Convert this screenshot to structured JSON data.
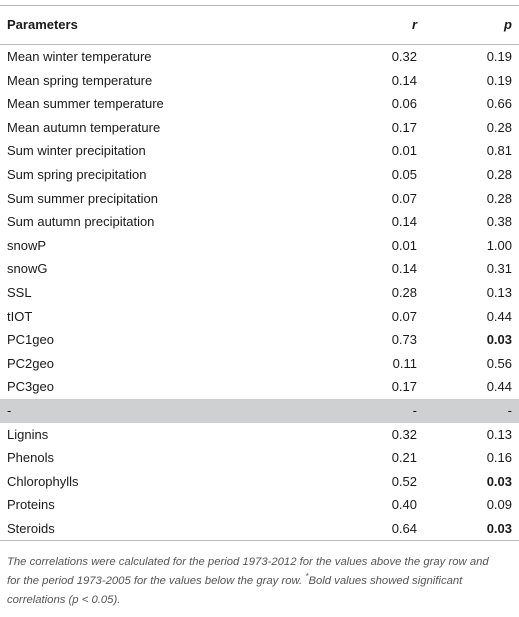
{
  "table": {
    "headers": {
      "parameter": "Parameters",
      "r": "r",
      "p": "p"
    },
    "rows": [
      {
        "parameter": "Mean winter temperature",
        "r": "0.32",
        "p": "0.19",
        "significant": false,
        "gray": false
      },
      {
        "parameter": "Mean spring temperature",
        "r": "0.14",
        "p": "0.19",
        "significant": false,
        "gray": false
      },
      {
        "parameter": "Mean summer temperature",
        "r": "0.06",
        "p": "0.66",
        "significant": false,
        "gray": false
      },
      {
        "parameter": "Mean autumn temperature",
        "r": "0.17",
        "p": "0.28",
        "significant": false,
        "gray": false
      },
      {
        "parameter": "Sum winter precipitation",
        "r": "0.01",
        "p": "0.81",
        "significant": false,
        "gray": false
      },
      {
        "parameter": "Sum spring precipitation",
        "r": "0.05",
        "p": "0.28",
        "significant": false,
        "gray": false
      },
      {
        "parameter": "Sum summer precipitation",
        "r": "0.07",
        "p": "0.28",
        "significant": false,
        "gray": false
      },
      {
        "parameter": "Sum autumn precipitation",
        "r": "0.14",
        "p": "0.38",
        "significant": false,
        "gray": false
      },
      {
        "parameter": "snowP",
        "r": "0.01",
        "p": "1.00",
        "significant": false,
        "gray": false
      },
      {
        "parameter": "snowG",
        "r": "0.14",
        "p": "0.31",
        "significant": false,
        "gray": false
      },
      {
        "parameter": "SSL",
        "r": "0.28",
        "p": "0.13",
        "significant": false,
        "gray": false
      },
      {
        "parameter": "tIOT",
        "r": "0.07",
        "p": "0.44",
        "significant": false,
        "gray": false
      },
      {
        "parameter": "PC1geo",
        "r": "0.73",
        "p": "0.03",
        "significant": true,
        "gray": false
      },
      {
        "parameter": "PC2geo",
        "r": "0.11",
        "p": "0.56",
        "significant": false,
        "gray": false
      },
      {
        "parameter": "PC3geo",
        "r": "0.17",
        "p": "0.44",
        "significant": false,
        "gray": false
      },
      {
        "parameter": "-",
        "r": "-",
        "p": "-",
        "significant": false,
        "gray": true
      },
      {
        "parameter": "Lignins",
        "r": "0.32",
        "p": "0.13",
        "significant": false,
        "gray": false
      },
      {
        "parameter": "Phenols",
        "r": "0.21",
        "p": "0.16",
        "significant": false,
        "gray": false
      },
      {
        "parameter": "Chlorophylls",
        "r": "0.52",
        "p": "0.03",
        "significant": true,
        "gray": false
      },
      {
        "parameter": "Proteins",
        "r": "0.40",
        "p": "0.09",
        "significant": false,
        "gray": false
      },
      {
        "parameter": "Steroids",
        "r": "0.64",
        "p": "0.03",
        "significant": true,
        "gray": false
      }
    ],
    "gray_row_color": "#cfd0d1"
  },
  "footnote": {
    "main": "The correlations were calculated for the period 1973-2012 for the values above the gray row and for the period 1973-2005 for the values below the gray row.",
    "marker": "*",
    "tail": "Bold values showed significant correlations (p < 0.05)."
  }
}
